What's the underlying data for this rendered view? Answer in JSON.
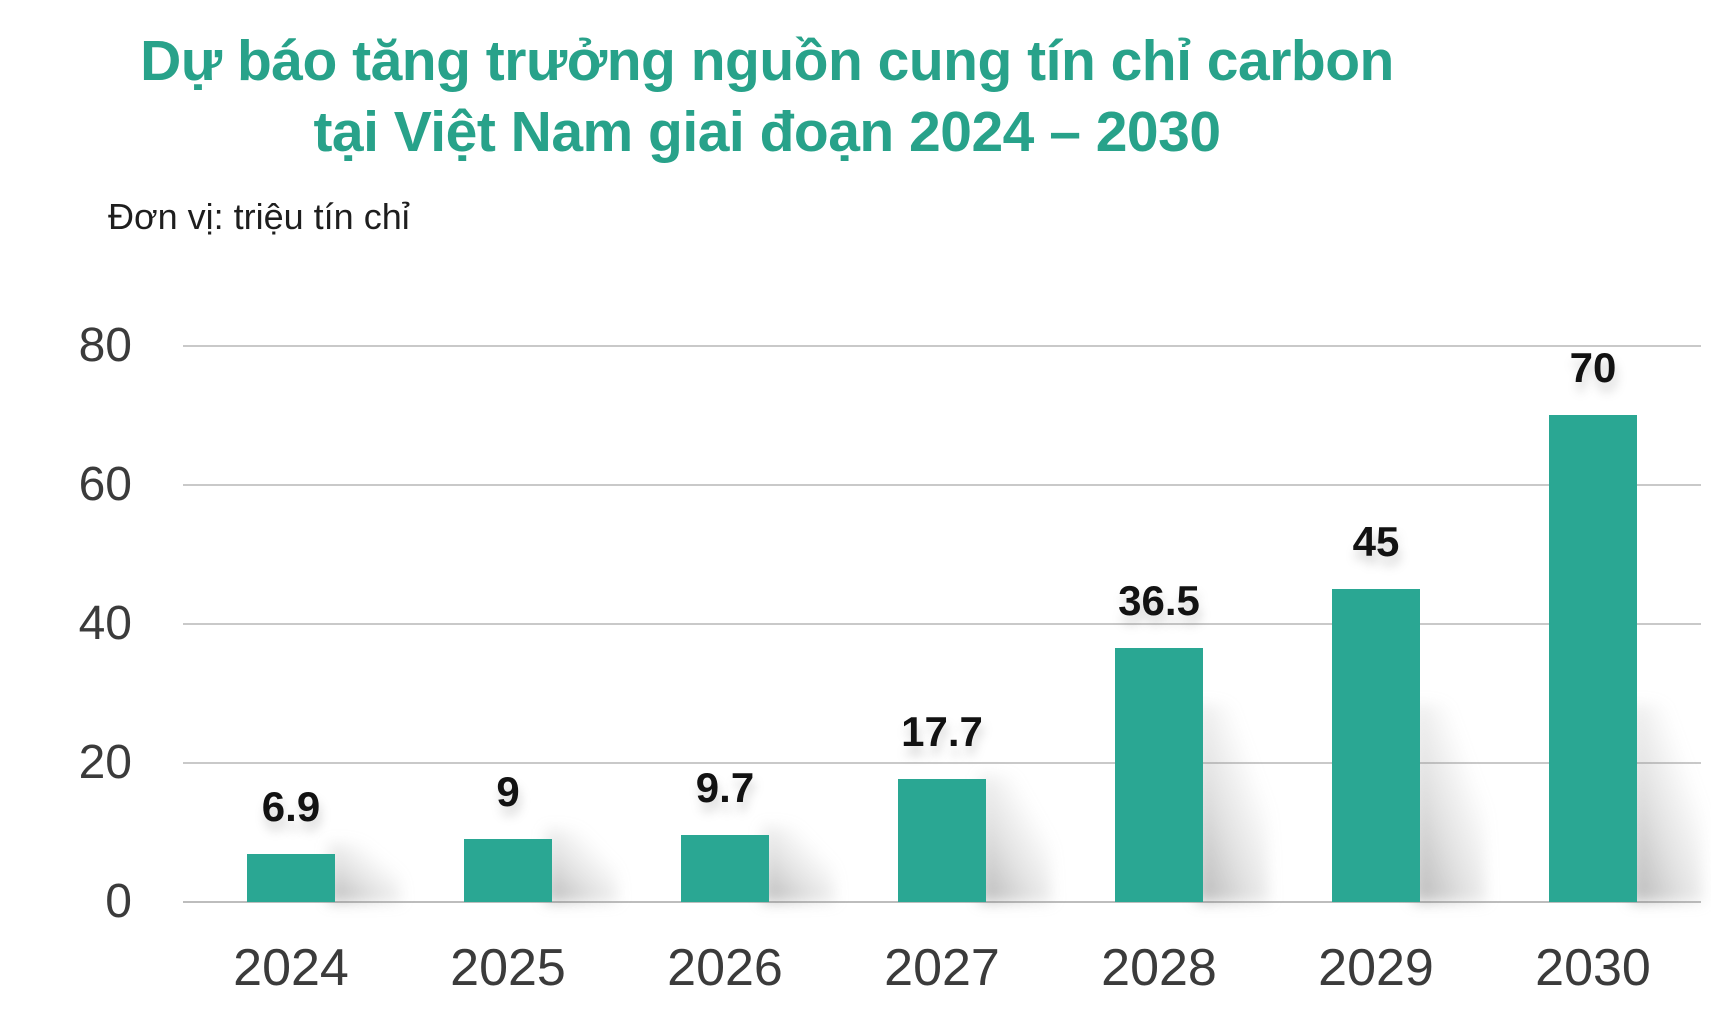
{
  "title": {
    "line1": "Dự báo tăng trưởng nguồn cung tín chỉ carbon",
    "line2": "tại Việt Nam giai đoạn 2024 – 2030"
  },
  "unit_label": "Đơn vị: triệu tín chỉ",
  "colors": {
    "title_accent": "#28a28a",
    "bar_fill": "#2aa793",
    "gridline": "#c9c9c9",
    "axis_line": "#bdbdbd",
    "tick_label": "#3b3b3b",
    "value_label": "#121212"
  },
  "chart_data": {
    "type": "bar",
    "title": "Dự báo tăng trưởng nguồn cung tín chỉ carbon tại Việt Nam giai đoạn 2024 – 2030",
    "subtitle": "Đơn vị: triệu tín chỉ",
    "categories": [
      "2024",
      "2025",
      "2026",
      "2027",
      "2028",
      "2029",
      "2030"
    ],
    "values": [
      6.9,
      9,
      9.7,
      17.7,
      36.5,
      45,
      70
    ],
    "xlabel": "",
    "ylabel": "triệu tín chỉ",
    "ylim": [
      0,
      80
    ],
    "yticks": [
      0,
      20,
      40,
      60,
      80
    ],
    "grid": true,
    "legend": false,
    "bar_color": "#2aa793"
  }
}
